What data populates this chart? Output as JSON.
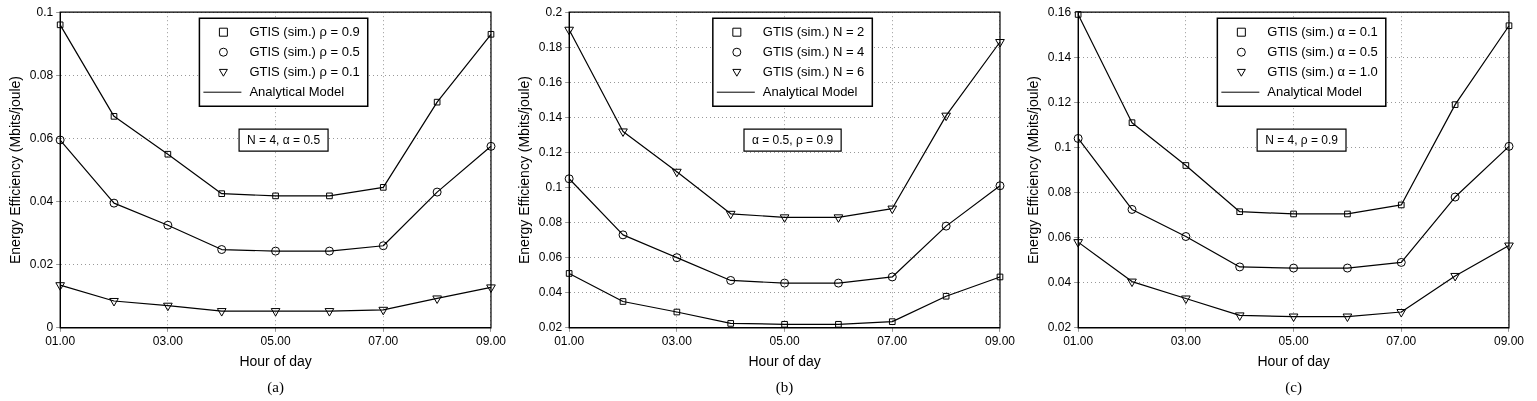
{
  "chart_data": [
    {
      "type": "line",
      "xlabel": "Hour of day",
      "ylabel": "Energy Efficiency (Mbits/joule)",
      "annotations": [
        "N = 4, α = 0.5",
        "(a)"
      ],
      "xlim": [
        1,
        9
      ],
      "xticks": [
        {
          "value": 1,
          "label": "01.00"
        },
        {
          "value": 3,
          "label": "03.00"
        },
        {
          "value": 5,
          "label": "05.00"
        },
        {
          "value": 7,
          "label": "07.00"
        },
        {
          "value": 9,
          "label": "09.00"
        }
      ],
      "ylim": [
        0,
        0.1
      ],
      "yticks": [
        0,
        0.02,
        0.04,
        0.06,
        0.08,
        0.1
      ],
      "grid": true,
      "legend": "top",
      "x": [
        1,
        2,
        3,
        4,
        5,
        6,
        7,
        8,
        9
      ],
      "series": [
        {
          "name": "GTIS (sim.) ρ = 0.9",
          "type": "scatter",
          "marker": "square",
          "color": "#000000",
          "values": [
            0.096,
            0.067,
            0.055,
            0.0425,
            0.0418,
            0.0418,
            0.0445,
            0.0715,
            0.093
          ]
        },
        {
          "name": "GTIS (sim.) ρ = 0.5",
          "type": "scatter",
          "marker": "circle",
          "color": "#000000",
          "values": [
            0.0595,
            0.0395,
            0.0325,
            0.0248,
            0.0243,
            0.0243,
            0.026,
            0.043,
            0.0575
          ]
        },
        {
          "name": "GTIS (sim.) ρ = 0.1",
          "type": "scatter",
          "marker": "triangle",
          "color": "#000000",
          "values": [
            0.0135,
            0.0085,
            0.007,
            0.0053,
            0.0053,
            0.0053,
            0.0057,
            0.0093,
            0.0128
          ]
        },
        {
          "name": "Analytical Model",
          "type": "line",
          "marker": "none",
          "color": "#000000",
          "values": [
            0.096,
            0.067,
            0.055,
            0.0425,
            0.0418,
            0.0418,
            0.0445,
            0.0715,
            0.093
          ]
        },
        {
          "type": "line",
          "marker": "none",
          "color": "#000000",
          "values": [
            0.0595,
            0.0395,
            0.0325,
            0.0248,
            0.0243,
            0.0243,
            0.026,
            0.043,
            0.0575
          ]
        },
        {
          "type": "line",
          "marker": "none",
          "color": "#000000",
          "values": [
            0.0135,
            0.0085,
            0.007,
            0.0053,
            0.0053,
            0.0053,
            0.0057,
            0.0093,
            0.0128
          ]
        }
      ]
    },
    {
      "type": "line",
      "xlabel": "Hour of day",
      "ylabel": "Energy Efficiency (Mbits/joule)",
      "annotations": [
        "α = 0.5, ρ = 0.9",
        "(b)"
      ],
      "xlim": [
        1,
        9
      ],
      "xticks": [
        {
          "value": 1,
          "label": "01.00"
        },
        {
          "value": 3,
          "label": "03.00"
        },
        {
          "value": 5,
          "label": "05.00"
        },
        {
          "value": 7,
          "label": "07.00"
        },
        {
          "value": 9,
          "label": "09.00"
        }
      ],
      "ylim": [
        0.02,
        0.2
      ],
      "yticks": [
        0.02,
        0.04,
        0.06,
        0.08,
        0.1,
        0.12,
        0.14,
        0.16,
        0.18,
        0.2
      ],
      "grid": true,
      "legend": "top",
      "x": [
        1,
        2,
        3,
        4,
        5,
        6,
        7,
        8,
        9
      ],
      "series": [
        {
          "name": "GTIS (sim.) N = 2",
          "type": "scatter",
          "marker": "square",
          "color": "#000000",
          "values": [
            0.051,
            0.035,
            0.029,
            0.0225,
            0.022,
            0.022,
            0.0235,
            0.038,
            0.049
          ]
        },
        {
          "name": "GTIS (sim.) N = 4",
          "type": "scatter",
          "marker": "circle",
          "color": "#000000",
          "values": [
            0.105,
            0.073,
            0.06,
            0.047,
            0.0455,
            0.0455,
            0.049,
            0.078,
            0.101
          ]
        },
        {
          "name": "GTIS (sim.) N = 6",
          "type": "scatter",
          "marker": "triangle",
          "color": "#000000",
          "values": [
            0.19,
            0.132,
            0.109,
            0.085,
            0.083,
            0.083,
            0.088,
            0.141,
            0.183
          ]
        },
        {
          "name": "Analytical Model",
          "type": "line",
          "marker": "none",
          "color": "#000000",
          "values": [
            0.051,
            0.035,
            0.029,
            0.0225,
            0.022,
            0.022,
            0.0235,
            0.038,
            0.049
          ]
        },
        {
          "type": "line",
          "marker": "none",
          "color": "#000000",
          "values": [
            0.105,
            0.073,
            0.06,
            0.047,
            0.0455,
            0.0455,
            0.049,
            0.078,
            0.101
          ]
        },
        {
          "type": "line",
          "marker": "none",
          "color": "#000000",
          "values": [
            0.19,
            0.132,
            0.109,
            0.085,
            0.083,
            0.083,
            0.088,
            0.141,
            0.183
          ]
        }
      ]
    },
    {
      "type": "line",
      "xlabel": "Hour of day",
      "ylabel": "Energy Efficiency (Mbits/joule)",
      "annotations": [
        "N = 4, ρ = 0.9",
        "(c)"
      ],
      "xlim": [
        1,
        9
      ],
      "xticks": [
        {
          "value": 1,
          "label": "01.00"
        },
        {
          "value": 3,
          "label": "03.00"
        },
        {
          "value": 5,
          "label": "05.00"
        },
        {
          "value": 7,
          "label": "07.00"
        },
        {
          "value": 9,
          "label": "09.00"
        }
      ],
      "ylim": [
        0.02,
        0.16
      ],
      "yticks": [
        0.02,
        0.04,
        0.06,
        0.08,
        0.1,
        0.12,
        0.14,
        0.16
      ],
      "grid": true,
      "legend": "top",
      "x": [
        1,
        2,
        3,
        4,
        5,
        6,
        7,
        8,
        9
      ],
      "series": [
        {
          "name": "GTIS (sim.) α = 0.1",
          "type": "scatter",
          "marker": "square",
          "color": "#000000",
          "values": [
            0.159,
            0.111,
            0.092,
            0.0715,
            0.0705,
            0.0705,
            0.0745,
            0.119,
            0.154
          ]
        },
        {
          "name": "GTIS (sim.) α = 0.5",
          "type": "scatter",
          "marker": "circle",
          "color": "#000000",
          "values": [
            0.104,
            0.0725,
            0.0605,
            0.047,
            0.0465,
            0.0465,
            0.049,
            0.078,
            0.1005
          ]
        },
        {
          "name": "GTIS (sim.) α = 1.0",
          "type": "scatter",
          "marker": "triangle",
          "color": "#000000",
          "values": [
            0.058,
            0.0405,
            0.033,
            0.0255,
            0.025,
            0.025,
            0.027,
            0.043,
            0.0565
          ]
        },
        {
          "name": "Analytical Model",
          "type": "line",
          "marker": "none",
          "color": "#000000",
          "values": [
            0.159,
            0.111,
            0.092,
            0.0715,
            0.0705,
            0.0705,
            0.0745,
            0.119,
            0.154
          ]
        },
        {
          "type": "line",
          "marker": "none",
          "color": "#000000",
          "values": [
            0.104,
            0.0725,
            0.0605,
            0.047,
            0.0465,
            0.0465,
            0.049,
            0.078,
            0.1005
          ]
        },
        {
          "type": "line",
          "marker": "none",
          "color": "#000000",
          "values": [
            0.058,
            0.0405,
            0.033,
            0.0255,
            0.025,
            0.025,
            0.027,
            0.043,
            0.0565
          ]
        }
      ]
    }
  ]
}
